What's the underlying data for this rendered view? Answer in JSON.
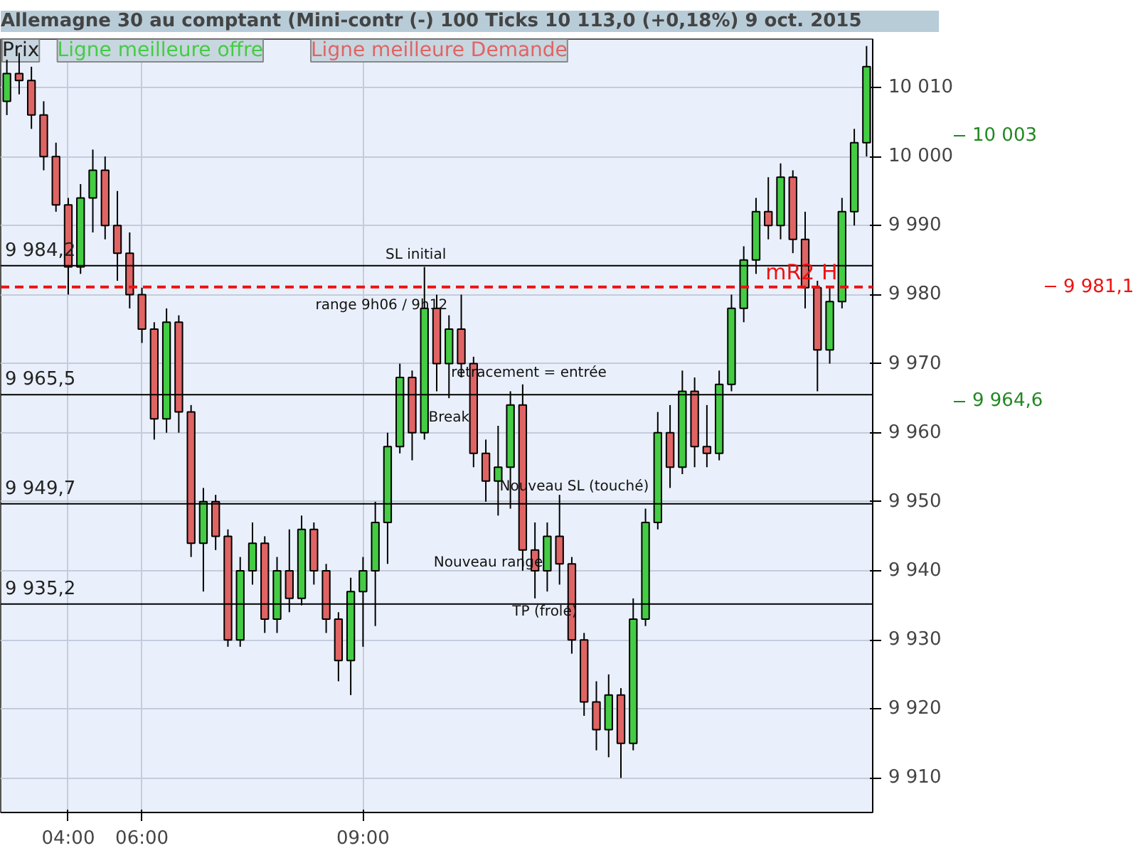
{
  "chart_data": {
    "type": "candlestick",
    "title": "Allemagne 30 au comptant (Mini-contr (-)     100 Ticks     10 113,0 (+0,18%)     9 oct. 2015",
    "categories": [
      null,
      null,
      null,
      null,
      null,
      "04:00",
      null,
      null,
      null,
      null,
      null,
      "06:00",
      null,
      null,
      null,
      null,
      null,
      null,
      null,
      null,
      null,
      null,
      null,
      null,
      null,
      null,
      null,
      null,
      null,
      "09:00",
      null,
      null,
      null,
      null,
      null,
      null,
      null,
      null,
      null,
      null,
      null,
      null,
      null,
      null,
      null,
      null,
      null,
      null,
      null,
      null,
      null,
      null,
      null,
      null,
      null,
      null,
      null,
      null,
      null,
      null,
      null,
      null,
      null,
      null,
      null,
      null,
      null,
      null,
      null,
      null,
      null
    ],
    "ohlc": [
      [
        10008,
        10014,
        10006,
        10012
      ],
      [
        10012,
        10015,
        10009,
        10011
      ],
      [
        10011,
        10013,
        10004,
        10006
      ],
      [
        10006,
        10008,
        9998,
        10000
      ],
      [
        10000,
        10002,
        9992,
        9993
      ],
      [
        9993,
        9994,
        9980,
        9984
      ],
      [
        9984,
        9996,
        9983,
        9994
      ],
      [
        9994,
        10001,
        9989,
        9998
      ],
      [
        9998,
        10000,
        9988,
        9990
      ],
      [
        9990,
        9995,
        9982,
        9986
      ],
      [
        9986,
        9989,
        9978,
        9980
      ],
      [
        9980,
        9981,
        9973,
        9975
      ],
      [
        9975,
        9976,
        9959,
        9962
      ],
      [
        9962,
        9978,
        9960,
        9976
      ],
      [
        9976,
        9977,
        9960,
        9963
      ],
      [
        9963,
        9964,
        9942,
        9944
      ],
      [
        9944,
        9952,
        9937,
        9950
      ],
      [
        9950,
        9951,
        9943,
        9945
      ],
      [
        9945,
        9946,
        9929,
        9930
      ],
      [
        9930,
        9942,
        9929,
        9940
      ],
      [
        9940,
        9947,
        9938,
        9944
      ],
      [
        9944,
        9945,
        9931,
        9933
      ],
      [
        9933,
        9942,
        9931,
        9940
      ],
      [
        9940,
        9946,
        9934,
        9936
      ],
      [
        9936,
        9948,
        9935,
        9946
      ],
      [
        9946,
        9947,
        9938,
        9940
      ],
      [
        9940,
        9941,
        9931,
        9933
      ],
      [
        9933,
        9934,
        9924,
        9927
      ],
      [
        9927,
        9939,
        9922,
        9937
      ],
      [
        9937,
        9942,
        9929,
        9940
      ],
      [
        9940,
        9950,
        9932,
        9947
      ],
      [
        9947,
        9960,
        9941,
        9958
      ],
      [
        9958,
        9970,
        9957,
        9968
      ],
      [
        9968,
        9969,
        9956,
        9960
      ],
      [
        9960,
        9984,
        9959,
        9978
      ],
      [
        9978,
        9980,
        9966,
        9970
      ],
      [
        9970,
        9977,
        9965,
        9975
      ],
      [
        9975,
        9980,
        9968,
        9970
      ],
      [
        9970,
        9971,
        9955,
        9957
      ],
      [
        9957,
        9959,
        9950,
        9953
      ],
      [
        9953,
        9961,
        9948,
        9955
      ],
      [
        9955,
        9966,
        9949,
        9964
      ],
      [
        9964,
        9967,
        9940,
        9943
      ],
      [
        9943,
        9947,
        9936,
        9940
      ],
      [
        9940,
        9947,
        9937,
        9945
      ],
      [
        9945,
        9951,
        9938,
        9941
      ],
      [
        9941,
        9942,
        9928,
        9930
      ],
      [
        9930,
        9931,
        9919,
        9921
      ],
      [
        9921,
        9924,
        9914,
        9917
      ],
      [
        9917,
        9925,
        9913,
        9922
      ],
      [
        9922,
        9923,
        9910,
        9915
      ],
      [
        9915,
        9936,
        9914,
        9933
      ],
      [
        9933,
        9949,
        9932,
        9947
      ],
      [
        9947,
        9963,
        9946,
        9960
      ],
      [
        9960,
        9964,
        9952,
        9955
      ],
      [
        9955,
        9969,
        9954,
        9966
      ],
      [
        9966,
        9968,
        9955,
        9958
      ],
      [
        9958,
        9964,
        9955,
        9957
      ],
      [
        9957,
        9969,
        9956,
        9967
      ],
      [
        9967,
        9980,
        9966,
        9978
      ],
      [
        9978,
        9987,
        9976,
        9985
      ],
      [
        9985,
        9994,
        9983,
        9992
      ],
      [
        9992,
        9997,
        9988,
        9990
      ],
      [
        9990,
        9999,
        9988,
        9997
      ],
      [
        9997,
        9998,
        9986,
        9988
      ],
      [
        9988,
        9992,
        9978,
        9981
      ],
      [
        9981,
        9982,
        9966,
        9972
      ],
      [
        9972,
        9981,
        9970,
        9979
      ],
      [
        9979,
        9994,
        9978,
        9992
      ],
      [
        9992,
        10004,
        9990,
        10002
      ],
      [
        10002,
        10016,
        10000,
        10013
      ]
    ],
    "ylim": [
      9905,
      10017
    ],
    "yticks": [
      {
        "value": 9910,
        "label": "9 910"
      },
      {
        "value": 9920,
        "label": "9 920"
      },
      {
        "value": 9930,
        "label": "9 930"
      },
      {
        "value": 9940,
        "label": "9 940"
      },
      {
        "value": 9950,
        "label": "9 950"
      },
      {
        "value": 9960,
        "label": "9 960"
      },
      {
        "value": 9970,
        "label": "9 970"
      },
      {
        "value": 9980,
        "label": "9 980"
      },
      {
        "value": 9990,
        "label": "9 990"
      },
      {
        "value": 10000,
        "label": "10 000"
      },
      {
        "value": 10010,
        "label": "10 010"
      }
    ],
    "grid": true,
    "y2lim": [
      9905,
      10017
    ],
    "y2ticks": [
      {
        "value": 10003,
        "label": "10 003"
      },
      {
        "value": 9964.6,
        "label": "9 964,6"
      }
    ],
    "ref_lines": [
      {
        "axis": "y",
        "value": 9984.2,
        "label": "9 984,2"
      },
      {
        "axis": "y",
        "value": 9965.5,
        "label": "9 965,5"
      },
      {
        "axis": "y",
        "value": 9949.7,
        "label": "9 949,7"
      },
      {
        "axis": "y",
        "value": 9935.2,
        "label": "9 935,2"
      },
      {
        "axis": "y",
        "value": 9981.1,
        "label": "9 981,1",
        "color": "#ee1111",
        "line_style": "dashed"
      }
    ],
    "annotations": [
      "Prix",
      "Ligne meilleure offre",
      "Ligne meilleure Demande",
      "mR2 H",
      "SL initial",
      "range 9h06 / 9h12",
      "retracement = entrée",
      "Break",
      "Nouveau SL (touché)",
      "Nouveau range",
      "TP (frolé)"
    ]
  }
}
